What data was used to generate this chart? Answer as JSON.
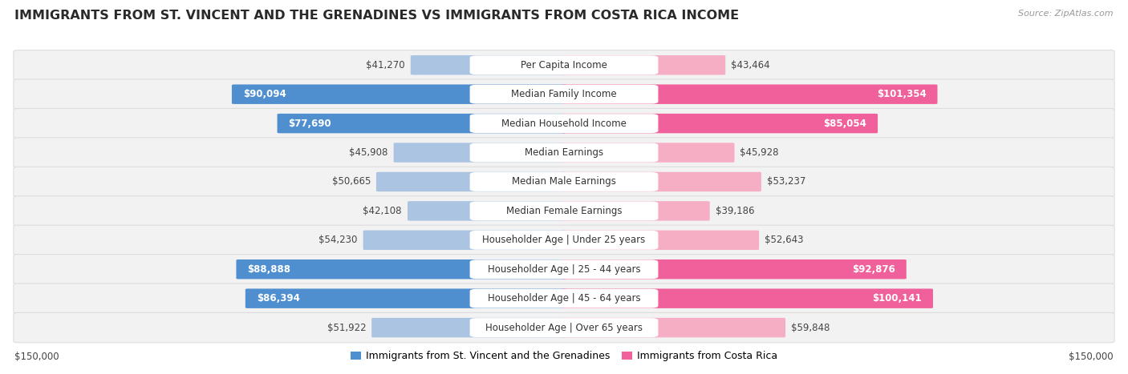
{
  "title": "IMMIGRANTS FROM ST. VINCENT AND THE GRENADINES VS IMMIGRANTS FROM COSTA RICA INCOME",
  "source": "Source: ZipAtlas.com",
  "categories": [
    "Per Capita Income",
    "Median Family Income",
    "Median Household Income",
    "Median Earnings",
    "Median Male Earnings",
    "Median Female Earnings",
    "Householder Age | Under 25 years",
    "Householder Age | 25 - 44 years",
    "Householder Age | 45 - 64 years",
    "Householder Age | Over 65 years"
  ],
  "left_values": [
    41270,
    90094,
    77690,
    45908,
    50665,
    42108,
    54230,
    88888,
    86394,
    51922
  ],
  "right_values": [
    43464,
    101354,
    85054,
    45928,
    53237,
    39186,
    52643,
    92876,
    100141,
    59848
  ],
  "left_labels": [
    "$41,270",
    "$90,094",
    "$77,690",
    "$45,908",
    "$50,665",
    "$42,108",
    "$54,230",
    "$88,888",
    "$86,394",
    "$51,922"
  ],
  "right_labels": [
    "$43,464",
    "$101,354",
    "$85,054",
    "$45,928",
    "$53,237",
    "$39,186",
    "$52,643",
    "$92,876",
    "$100,141",
    "$59,848"
  ],
  "max_value": 150000,
  "left_color_light": "#aac4e2",
  "left_color_dark": "#4f8fcf",
  "right_color_light": "#f5aec4",
  "right_color_dark": "#f0609a",
  "row_bg_color": "#f2f2f2",
  "row_border_color": "#dddddd",
  "legend_left": "Immigrants from St. Vincent and the Grenadines",
  "legend_right": "Immigrants from Costa Rica",
  "threshold_dark": 75000,
  "title_fontsize": 11.5,
  "label_fontsize": 8.5,
  "category_fontsize": 8.5
}
